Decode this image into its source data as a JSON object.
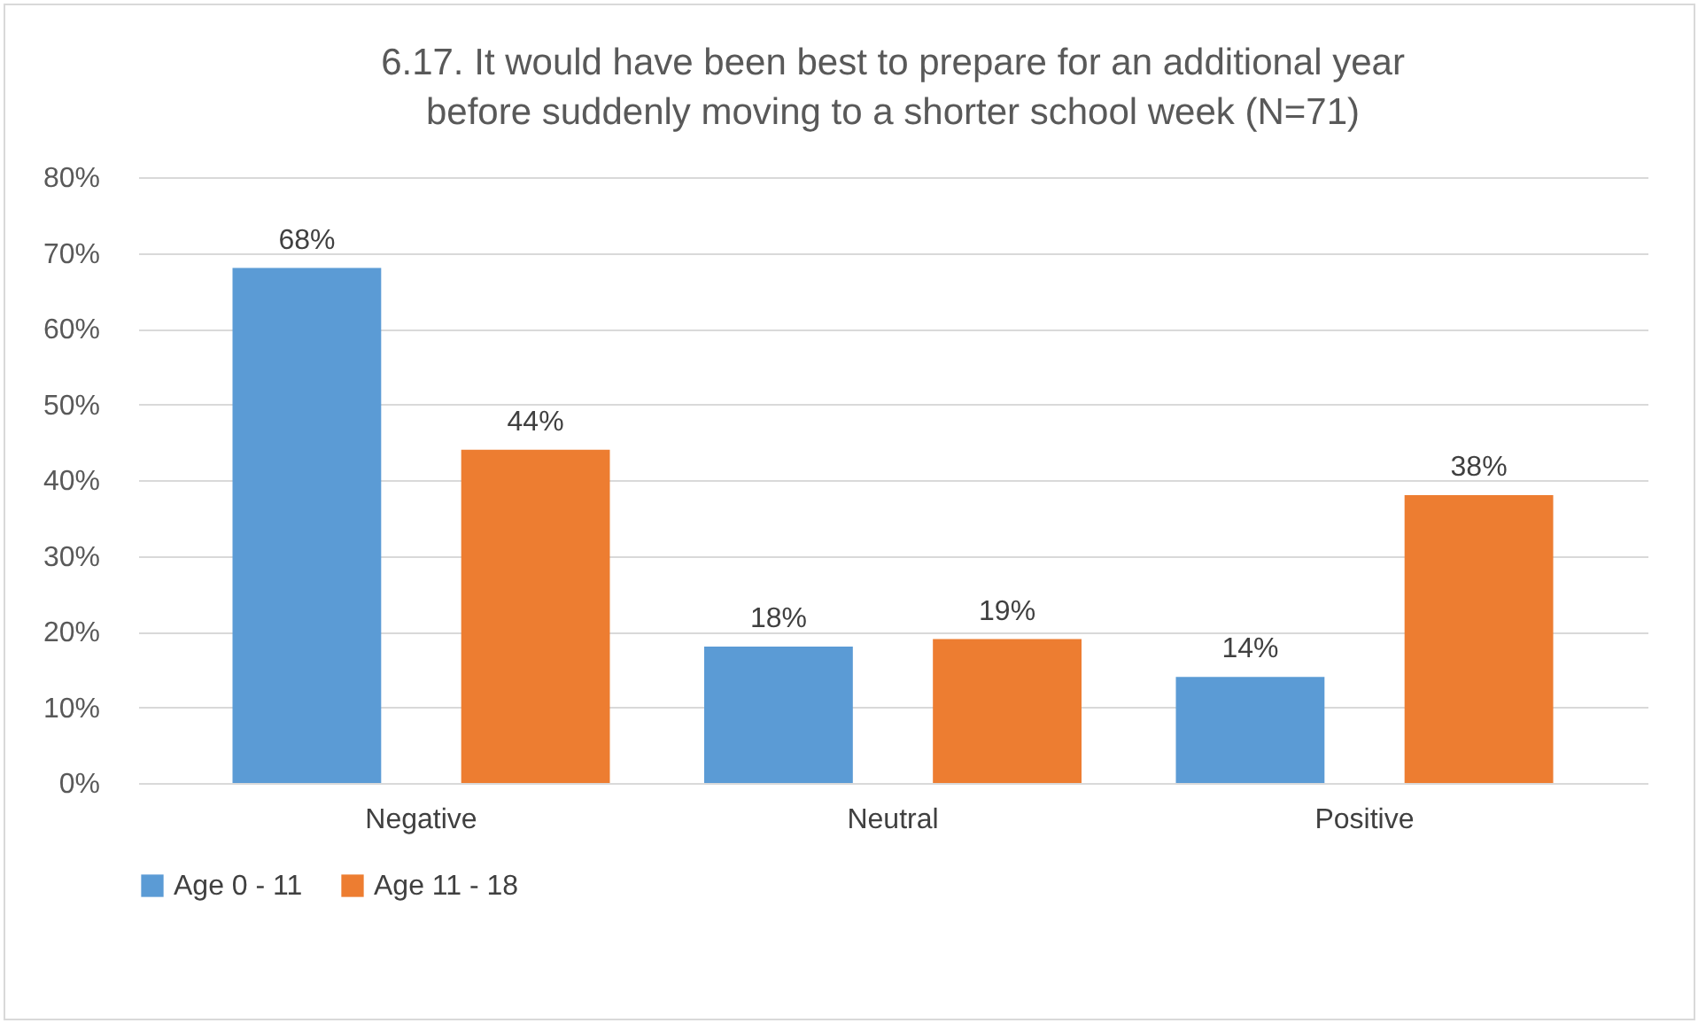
{
  "chart_data": {
    "type": "bar",
    "title": "6.17. It would have been best to prepare for an additional year before suddenly moving to a shorter school week (N=71)",
    "categories": [
      "Negative",
      "Neutral",
      "Positive"
    ],
    "series": [
      {
        "name": "Age 0 - 11",
        "color": "#5b9bd5",
        "values": [
          68,
          18,
          14
        ],
        "value_labels": [
          "68%",
          "18%",
          "14%"
        ]
      },
      {
        "name": "Age 11 - 18",
        "color": "#ed7d31",
        "values": [
          44,
          19,
          38
        ],
        "value_labels": [
          "44%",
          "19%",
          "38%"
        ]
      }
    ],
    "ylim": [
      0,
      80
    ],
    "yticks": [
      {
        "value": 0,
        "label": "0%"
      },
      {
        "value": 10,
        "label": "10%"
      },
      {
        "value": 20,
        "label": "20%"
      },
      {
        "value": 30,
        "label": "30%"
      },
      {
        "value": 40,
        "label": "40%"
      },
      {
        "value": 50,
        "label": "50%"
      },
      {
        "value": 60,
        "label": "60%"
      },
      {
        "value": 70,
        "label": "70%"
      },
      {
        "value": 80,
        "label": "80%"
      }
    ],
    "grid": "y",
    "legend": "bottom"
  }
}
